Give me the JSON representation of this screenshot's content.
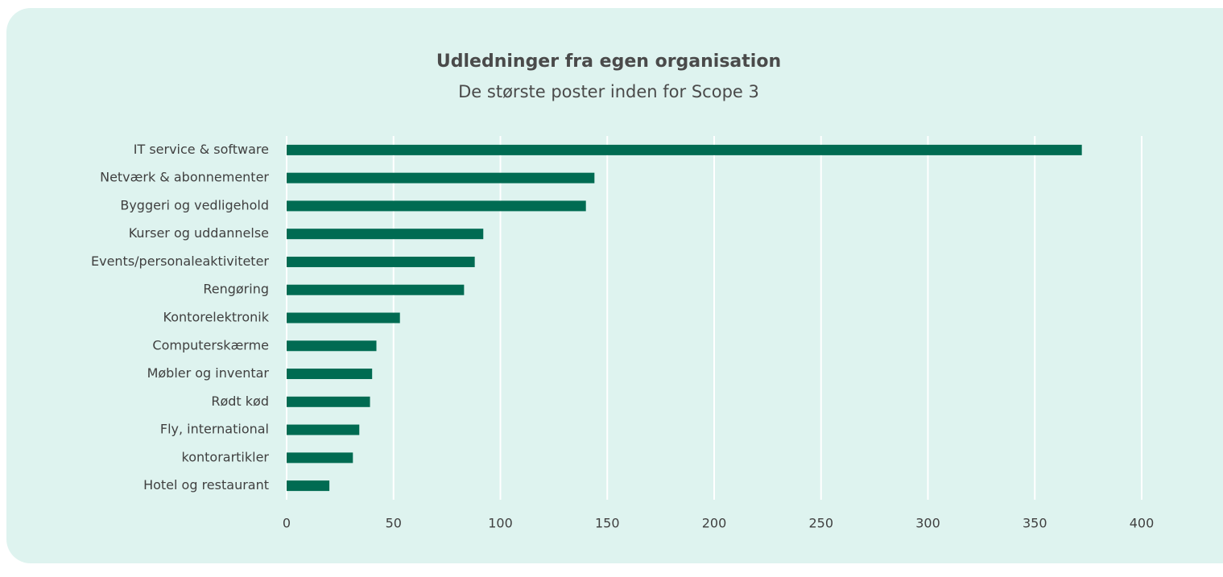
{
  "chart_data": {
    "type": "bar",
    "orientation": "horizontal",
    "title": "Udledninger fra egen organisation",
    "subtitle": "De største poster inden for Scope 3",
    "categories": [
      "IT service & software",
      "Netværk & abonnementer",
      "Byggeri og vedligehold",
      "Kurser og uddannelse",
      "Events/personaleaktiviteter",
      "Rengøring",
      "Kontorelektronik",
      "Computerskærme",
      "Møbler og inventar",
      "Rødt kød",
      "Fly, international",
      "kontorartikler",
      "Hotel og restaurant"
    ],
    "values": [
      372,
      144,
      140,
      92,
      88,
      83,
      53,
      42,
      40,
      39,
      34,
      31,
      20
    ],
    "color": "#006b52",
    "xlim": [
      0,
      400
    ],
    "xticks": [
      0,
      50,
      100,
      150,
      200,
      250,
      300,
      350,
      400
    ],
    "grid": true
  }
}
